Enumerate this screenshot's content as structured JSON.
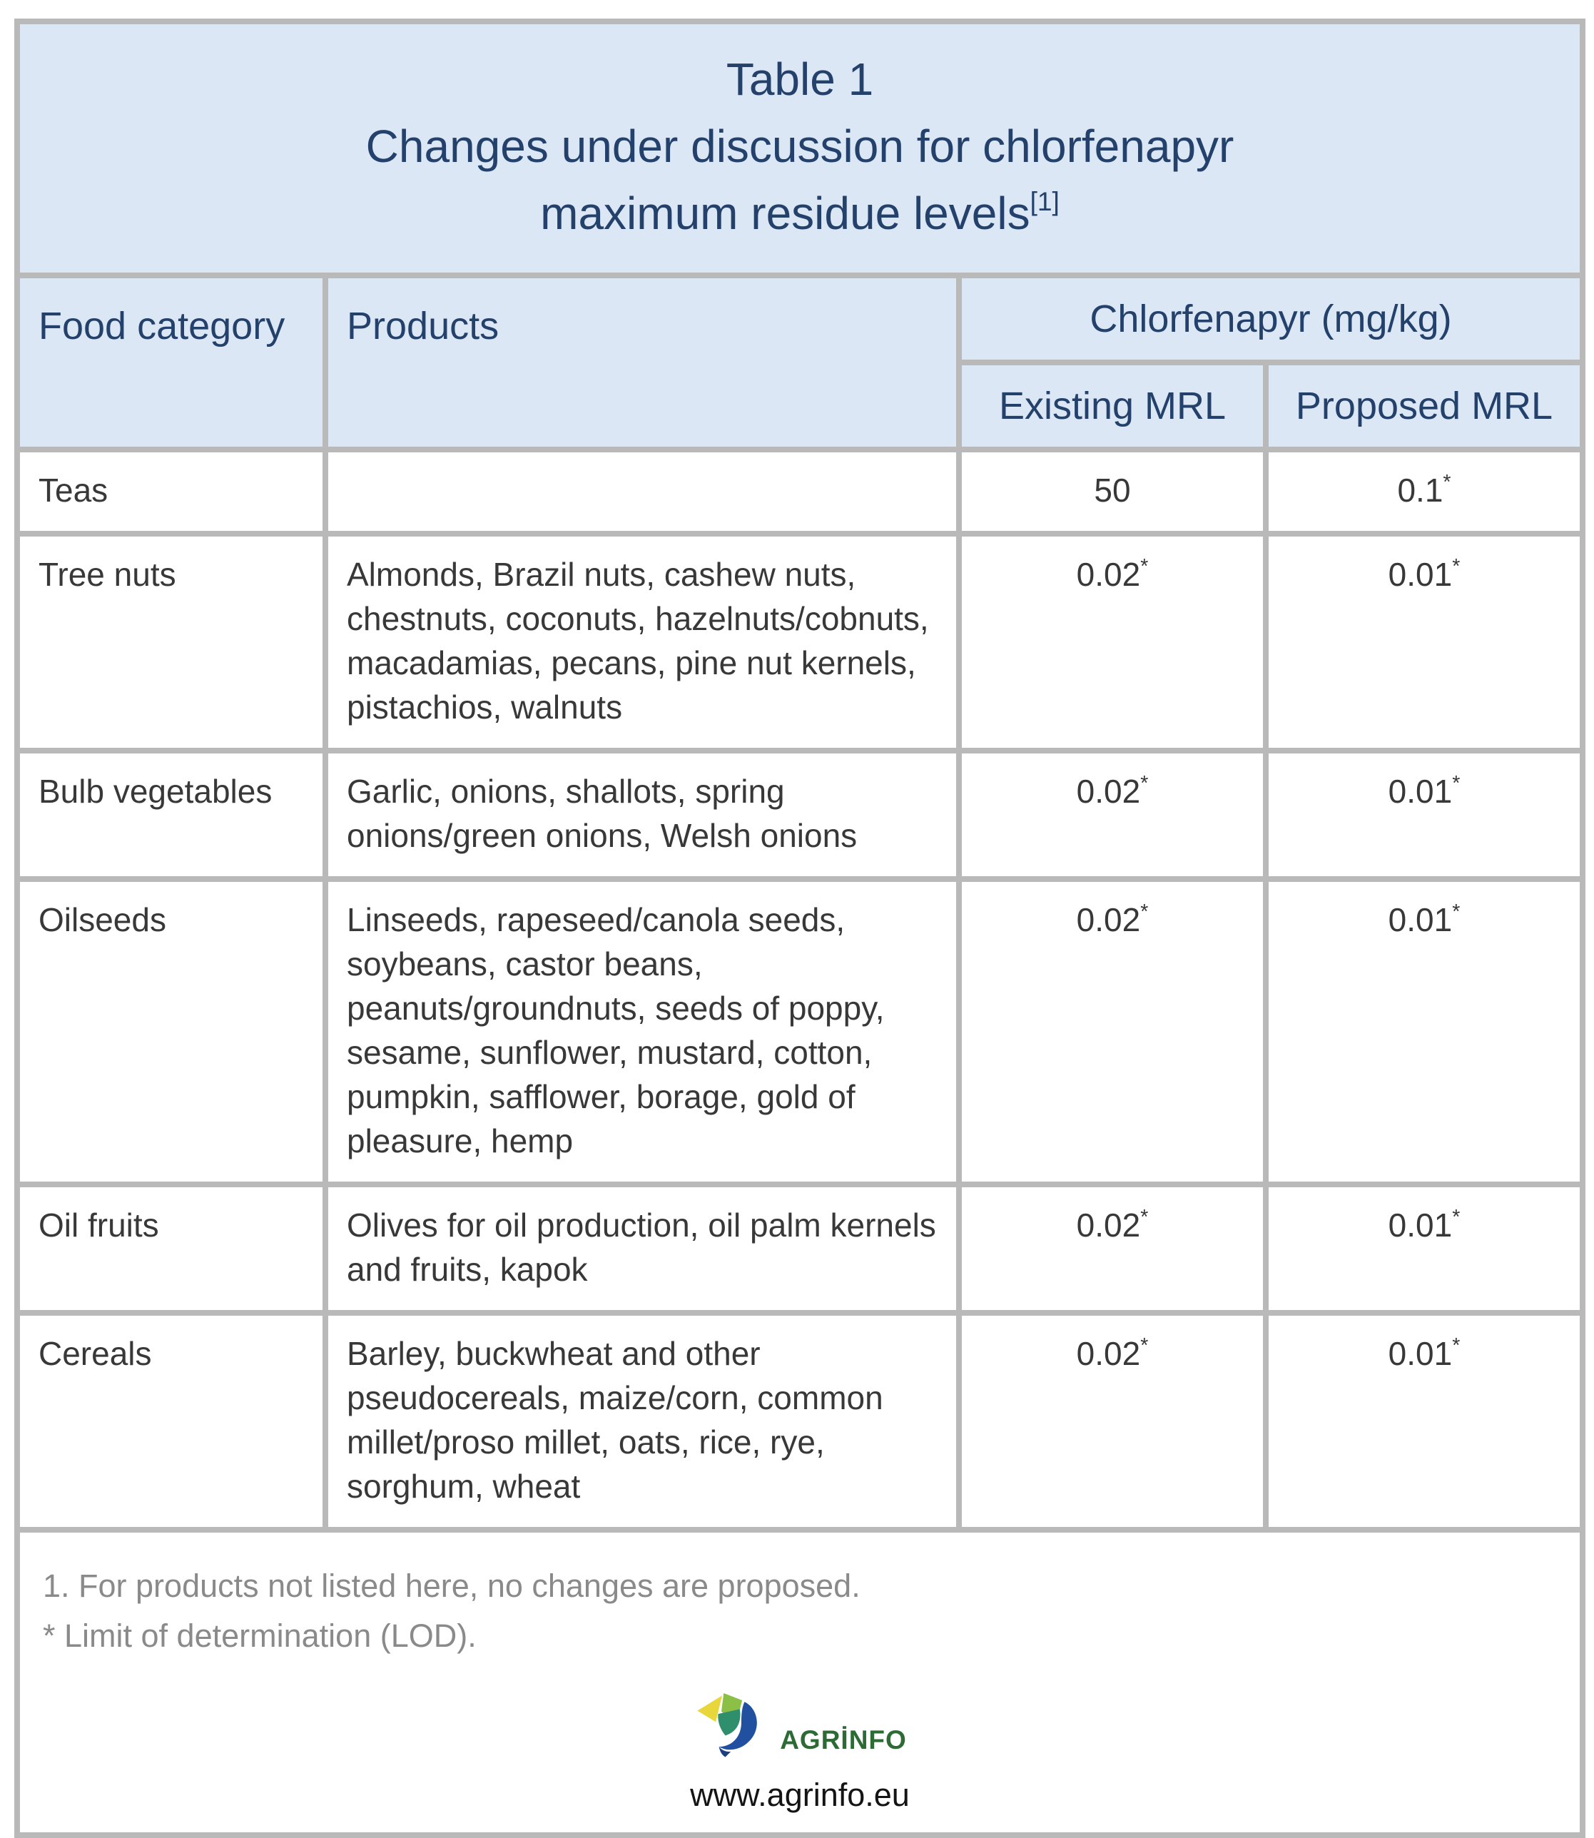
{
  "colors": {
    "header-bg": "#dbe7f5",
    "border": "#b9b9b9",
    "navy": "#24416b",
    "body-text": "#383838",
    "footnote": "#8a8a8a",
    "logo-yellow": "#e8d73a",
    "logo-lightgreen": "#8cbf45",
    "logo-teal": "#2f8f6d",
    "logo-blue": "#2150a0",
    "logo-green-text": "#2d6b35"
  },
  "table": {
    "title": {
      "line1": "Table 1",
      "line2": "Changes under discussion for chlorfenapyr",
      "line3": "maximum residue levels",
      "line3_sup": "[1]"
    },
    "headers": {
      "food_category": "Food category",
      "products": "Products",
      "group": "Chlorfenapyr (mg/kg)",
      "existing": "Existing MRL",
      "proposed": "Proposed MRL"
    },
    "rows": [
      {
        "category": "Teas",
        "products": "",
        "existing": "50",
        "proposed": "0.1*"
      },
      {
        "category": "Tree nuts",
        "products": "Almonds, Brazil nuts, cashew nuts, chestnuts, coconuts, hazelnuts/cobnuts, macadamias, pecans, pine nut kernels, pistachios, walnuts",
        "existing": "0.02*",
        "proposed": "0.01*"
      },
      {
        "category": "Bulb vegetables",
        "products": "Garlic, onions, shallots, spring onions/green onions, Welsh onions",
        "existing": "0.02*",
        "proposed": "0.01*"
      },
      {
        "category": "Oilseeds",
        "products": "Linseeds, rapeseed/canola seeds, soybeans, castor beans, peanuts/groundnuts, seeds of poppy, sesame, sunflower, mustard, cotton, pumpkin, safflower, borage, gold of pleasure, hemp",
        "existing": "0.02*",
        "proposed": "0.01*"
      },
      {
        "category": "Oil fruits",
        "products": "Olives for oil production, oil palm kernels and fruits, kapok",
        "existing": "0.02*",
        "proposed": "0.01*"
      },
      {
        "category": "Cereals",
        "products": "Barley, buckwheat and other pseudocereals, maize/corn, common millet/proso millet, oats, rice, rye, sorghum, wheat",
        "existing": "0.02*",
        "proposed": "0.01*"
      }
    ],
    "footnotes": [
      "1. For products not listed here, no changes are proposed.",
      "* Limit of determination (LOD)."
    ]
  },
  "branding": {
    "logo_text": "AGRİNFO",
    "website": "www.agrinfo.eu"
  }
}
